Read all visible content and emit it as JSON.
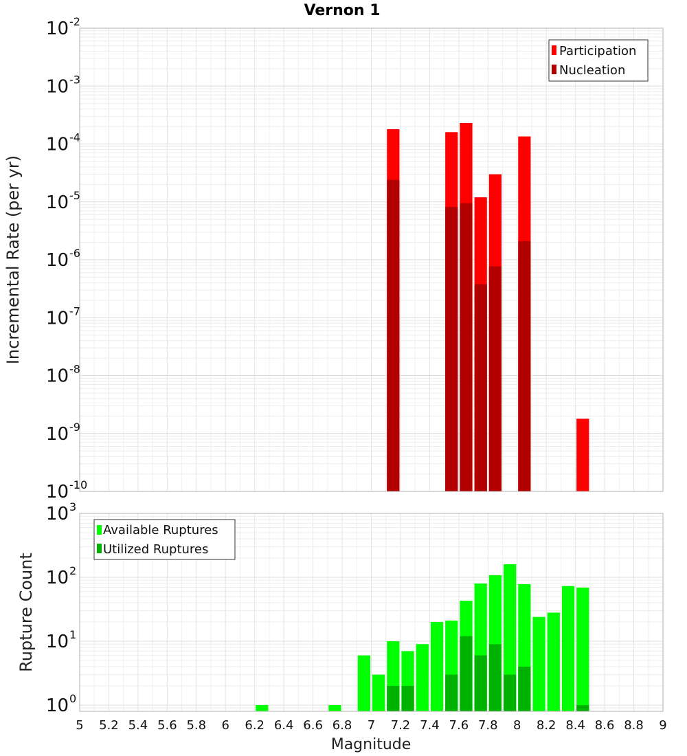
{
  "chart_data": [
    {
      "type": "bar",
      "title": "Vernon 1",
      "xlabel": "Magnitude",
      "ylabel": "Incremental Rate (per yr)",
      "yscale": "log",
      "xlim": [
        5,
        9
      ],
      "ylim": [
        1e-10,
        0.01
      ],
      "bin_width": 0.1,
      "ytick_exponents": [
        "-10",
        "-9",
        "-8",
        "-7",
        "-6",
        "-5",
        "-4",
        "-3",
        "-2"
      ],
      "legend_position": "top-right",
      "series": [
        {
          "name": "Participation",
          "color": "#ff0000",
          "x": [
            7.15,
            7.55,
            7.65,
            7.75,
            7.85,
            8.05,
            8.45
          ],
          "values": [
            0.00018,
            0.00016,
            0.00023,
            1.2e-05,
            3e-05,
            0.000135,
            1.8e-09
          ]
        },
        {
          "name": "Nucleation",
          "color": "#b20000",
          "x": [
            7.15,
            7.55,
            7.65,
            7.75,
            7.85,
            8.05
          ],
          "values": [
            2.4e-05,
            8.2e-06,
            9.5e-06,
            3.8e-07,
            7.7e-07,
            2.1e-06
          ]
        }
      ]
    },
    {
      "type": "bar",
      "xlabel": "Magnitude",
      "ylabel": "Rupture Count",
      "yscale": "log",
      "xlim": [
        5,
        9
      ],
      "ylim": [
        0.8,
        1000
      ],
      "bin_width": 0.1,
      "ytick_exponents": [
        "0",
        "1",
        "2",
        "3"
      ],
      "xticks": [
        "5",
        "5.2",
        "5.4",
        "5.6",
        "5.8",
        "6",
        "6.2",
        "6.4",
        "6.6",
        "6.8",
        "7",
        "7.2",
        "7.4",
        "7.6",
        "7.8",
        "8",
        "8.2",
        "8.4",
        "8.6",
        "8.8",
        "9"
      ],
      "legend_position": "top-left",
      "series": [
        {
          "name": "Available Ruptures",
          "color": "#00ff00",
          "x": [
            6.25,
            6.75,
            6.95,
            7.05,
            7.15,
            7.25,
            7.35,
            7.45,
            7.55,
            7.65,
            7.75,
            7.85,
            7.95,
            8.05,
            8.15,
            8.25,
            8.35,
            8.45
          ],
          "values": [
            1,
            1,
            6,
            3,
            10,
            7,
            9,
            20,
            21,
            43,
            80,
            108,
            160,
            78,
            24,
            28,
            73,
            69
          ]
        },
        {
          "name": "Utilized Ruptures",
          "color": "#00b200",
          "x": [
            7.15,
            7.25,
            7.55,
            7.65,
            7.75,
            7.85,
            7.95,
            8.05,
            8.45
          ],
          "values": [
            2,
            2,
            3,
            12,
            6,
            9,
            3,
            4,
            1
          ]
        }
      ]
    }
  ]
}
